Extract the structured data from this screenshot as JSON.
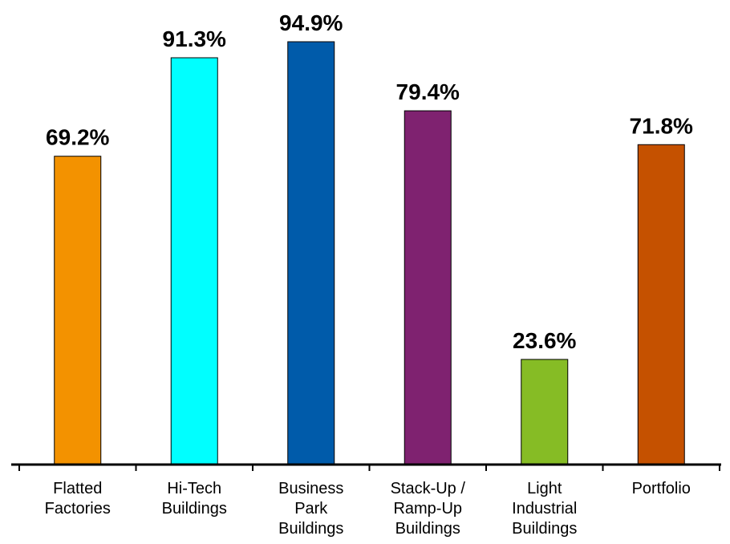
{
  "chart_data": {
    "type": "bar",
    "title": "",
    "xlabel": "",
    "ylabel": "",
    "ylim": [
      0,
      100
    ],
    "grid": false,
    "legend": "none",
    "categories": [
      [
        "Flatted",
        "Factories"
      ],
      [
        "Hi-Tech",
        "Buildings"
      ],
      [
        "Business",
        "Park",
        "Buildings"
      ],
      [
        "Stack-Up /",
        "Ramp-Up",
        "Buildings"
      ],
      [
        "Light",
        "Industrial",
        "Buildings"
      ],
      [
        "Portfolio"
      ]
    ],
    "values": [
      69.2,
      91.3,
      94.9,
      79.4,
      23.6,
      71.8
    ],
    "value_labels": [
      "69.2%",
      "91.3%",
      "94.9%",
      "79.4%",
      "23.6%",
      "71.8%"
    ],
    "colors": [
      "#F39200",
      "#00FFFF",
      "#005BAA",
      "#7F2270",
      "#86BC25",
      "#C55100"
    ]
  }
}
